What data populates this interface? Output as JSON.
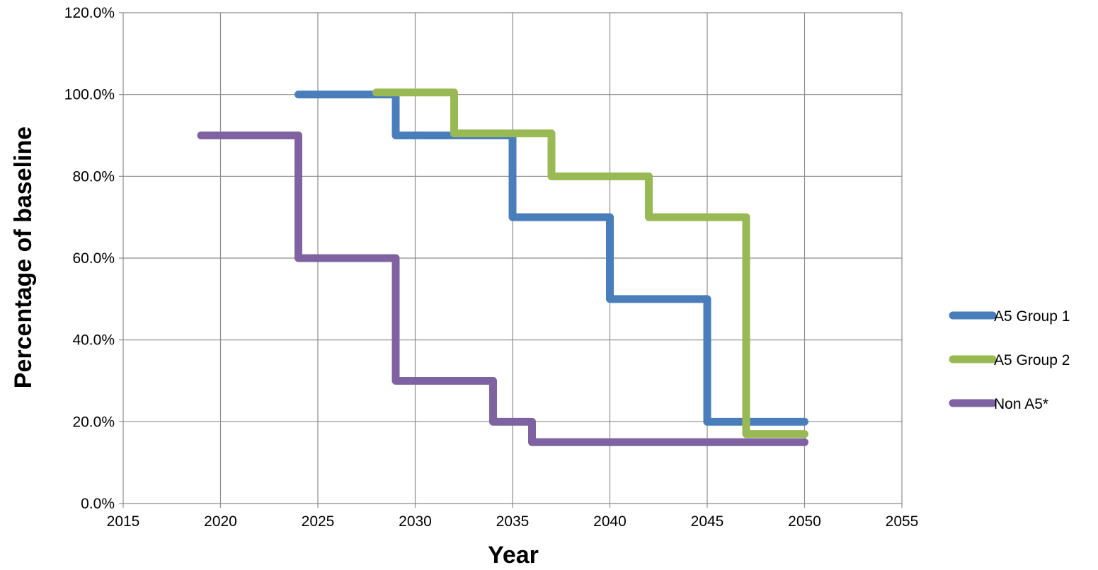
{
  "chart_data": {
    "type": "line",
    "step": true,
    "xlabel": "Year",
    "ylabel": "Percentage of baseline",
    "xlim": [
      2015,
      2055
    ],
    "ylim": [
      0,
      1.2
    ],
    "x_ticks": [
      "2015",
      "2020",
      "2025",
      "2030",
      "2035",
      "2040",
      "2045",
      "2050",
      "2055"
    ],
    "y_ticks": [
      "0.0%",
      "20.0%",
      "40.0%",
      "60.0%",
      "80.0%",
      "100.0%",
      "120.0%"
    ],
    "grid": true,
    "legend_position": "right",
    "series": [
      {
        "name": "A5 Group 1",
        "color": "#4a7ebb",
        "points": [
          [
            2024,
            1.0
          ],
          [
            2029,
            1.0
          ],
          [
            2029,
            0.9
          ],
          [
            2035,
            0.9
          ],
          [
            2035,
            0.7
          ],
          [
            2040,
            0.7
          ],
          [
            2040,
            0.5
          ],
          [
            2045,
            0.5
          ],
          [
            2045,
            0.2
          ],
          [
            2050,
            0.2
          ]
        ]
      },
      {
        "name": "A5 Group 2",
        "color": "#98b954",
        "points": [
          [
            2028,
            1.005
          ],
          [
            2032,
            1.005
          ],
          [
            2032,
            0.905
          ],
          [
            2037,
            0.905
          ],
          [
            2037,
            0.8
          ],
          [
            2042,
            0.8
          ],
          [
            2042,
            0.7
          ],
          [
            2047,
            0.7
          ],
          [
            2047,
            0.17
          ],
          [
            2050,
            0.17
          ]
        ]
      },
      {
        "name": "Non A5*",
        "color": "#7f62a1",
        "points": [
          [
            2019,
            0.9
          ],
          [
            2024,
            0.9
          ],
          [
            2024,
            0.6
          ],
          [
            2029,
            0.6
          ],
          [
            2029,
            0.3
          ],
          [
            2034,
            0.3
          ],
          [
            2034,
            0.2
          ],
          [
            2036,
            0.2
          ],
          [
            2036,
            0.15
          ],
          [
            2050,
            0.15
          ]
        ]
      }
    ]
  }
}
